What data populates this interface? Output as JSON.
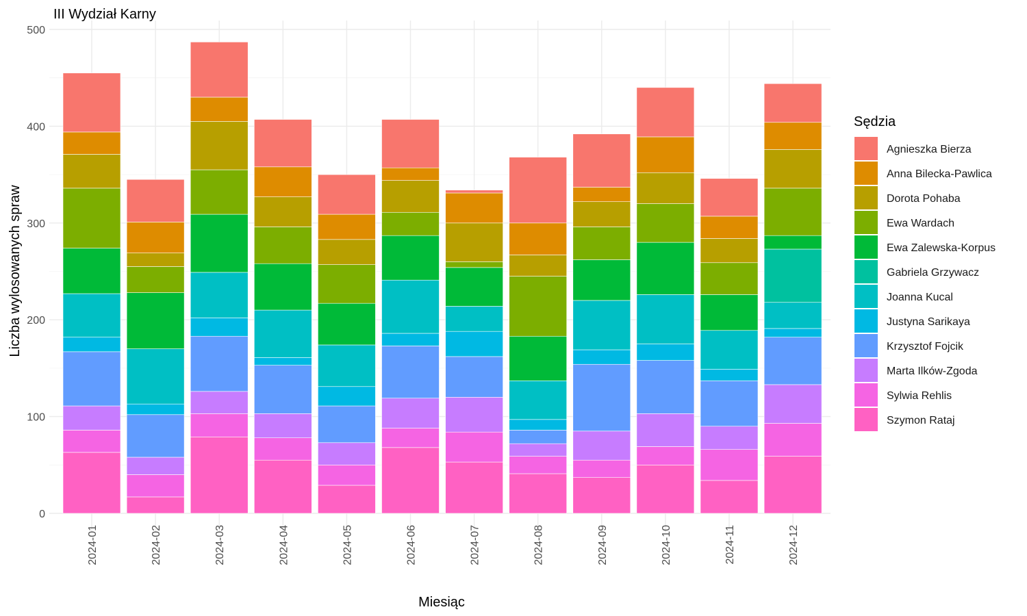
{
  "chart_data": {
    "type": "bar",
    "stacked": true,
    "title": "III Wydział Karny",
    "xlabel": "Miesiąc",
    "ylabel": "Liczba wylosowanych spraw",
    "ylim": [
      0,
      500
    ],
    "yticks": [
      0,
      100,
      200,
      300,
      400,
      500
    ],
    "grid": true,
    "legend_title": "Sędzia",
    "legend_position": "right",
    "categories": [
      "2024-01",
      "2024-02",
      "2024-03",
      "2024-04",
      "2024-05",
      "2024-06",
      "2024-07",
      "2024-08",
      "2024-09",
      "2024-10",
      "2024-11",
      "2024-12"
    ],
    "series": [
      {
        "name": "Szymon Rataj",
        "color": "#FF61C3",
        "values": [
          63,
          17,
          79,
          55,
          29,
          68,
          53,
          41,
          37,
          50,
          34,
          59
        ]
      },
      {
        "name": "Sylwia Rehlis",
        "color": "#F564E3",
        "values": [
          23,
          23,
          24,
          23,
          21,
          20,
          31,
          18,
          18,
          19,
          32,
          34
        ]
      },
      {
        "name": "Marta Ilków-Zgoda",
        "color": "#C77CFF",
        "values": [
          25,
          18,
          23,
          25,
          23,
          31,
          36,
          13,
          30,
          34,
          24,
          40
        ]
      },
      {
        "name": "Krzysztof Fojcik",
        "color": "#619CFF",
        "values": [
          56,
          44,
          57,
          50,
          38,
          54,
          42,
          14,
          69,
          55,
          47,
          49
        ]
      },
      {
        "name": "Justyna Sarikaya",
        "color": "#00B9E3",
        "values": [
          15,
          11,
          19,
          8,
          20,
          13,
          26,
          11,
          15,
          17,
          12,
          9
        ]
      },
      {
        "name": "Joanna Kucal",
        "color": "#00BFC4",
        "values": [
          45,
          57,
          47,
          49,
          43,
          55,
          26,
          40,
          51,
          51,
          40,
          27
        ]
      },
      {
        "name": "Gabriela Grzywacz",
        "color": "#00C19F",
        "values": [
          0,
          0,
          0,
          0,
          0,
          0,
          0,
          0,
          0,
          0,
          0,
          55
        ]
      },
      {
        "name": "Ewa Zalewska-Korpus",
        "color": "#00BA38",
        "values": [
          47,
          58,
          60,
          48,
          43,
          46,
          40,
          46,
          42,
          54,
          37,
          14
        ]
      },
      {
        "name": "Ewa Wardach",
        "color": "#7CAE00",
        "values": [
          62,
          27,
          46,
          38,
          40,
          24,
          6,
          62,
          34,
          40,
          33,
          49
        ]
      },
      {
        "name": "Dorota Pohaba",
        "color": "#B79F00",
        "values": [
          35,
          14,
          50,
          31,
          26,
          33,
          40,
          22,
          26,
          32,
          25,
          40
        ]
      },
      {
        "name": "Anna Bilecka-Pawlica",
        "color": "#DE8C00",
        "values": [
          23,
          32,
          25,
          31,
          26,
          13,
          31,
          33,
          15,
          37,
          23,
          28
        ]
      },
      {
        "name": "Agnieszka Bierza",
        "color": "#F8766D",
        "values": [
          61,
          44,
          57,
          49,
          41,
          50,
          3,
          68,
          55,
          51,
          39,
          40
        ]
      }
    ]
  }
}
